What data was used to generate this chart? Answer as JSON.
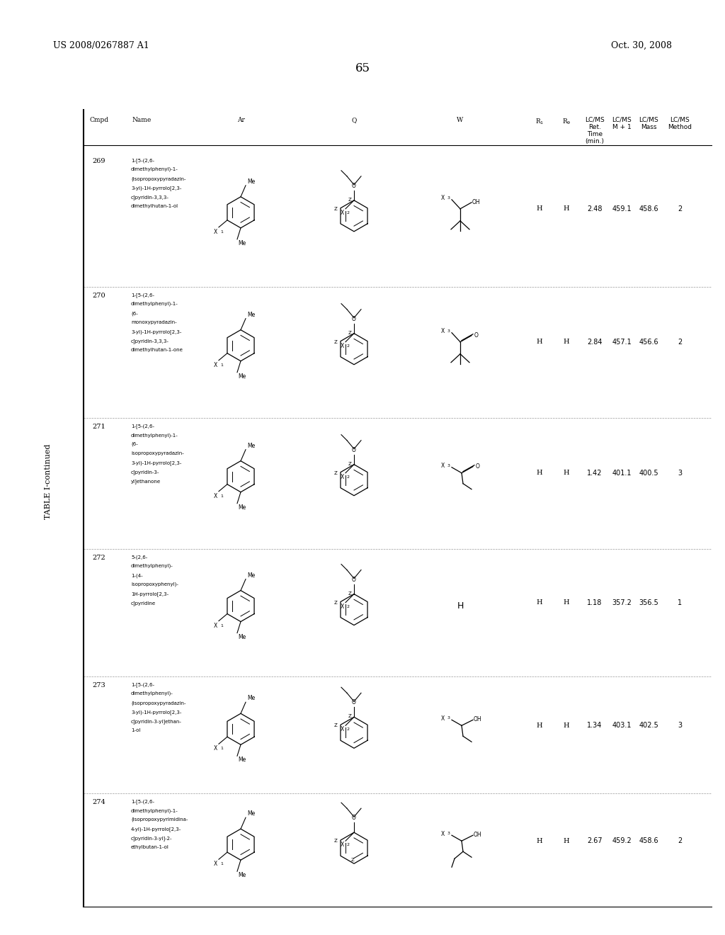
{
  "patent_left": "US 2008/0267887 A1",
  "patent_right": "Oct. 30, 2008",
  "page_number": "65",
  "table_title": "TABLE I-continued",
  "bg": "#f0f0f0",
  "page_bg": "#ffffff",
  "compounds": [
    {
      "cmpd": "269",
      "R1": "H",
      "R9": "H",
      "ret": "2.48",
      "m1": "459.1",
      "mass": "458.6",
      "method": "2"
    },
    {
      "cmpd": "270",
      "R1": "H",
      "R9": "H",
      "ret": "2.84",
      "m1": "457.1",
      "mass": "456.6",
      "method": "2"
    },
    {
      "cmpd": "271",
      "R1": "H",
      "R9": "H",
      "ret": "1.42",
      "m1": "401.1",
      "mass": "400.5",
      "method": "3"
    },
    {
      "cmpd": "272",
      "R1": "H",
      "R9": "H",
      "ret": "1.18",
      "m1": "357.2",
      "mass": "356.5",
      "method": "1"
    },
    {
      "cmpd": "273",
      "R1": "H",
      "R9": "H",
      "ret": "1.34",
      "m1": "403.1",
      "mass": "402.5",
      "method": "3"
    },
    {
      "cmpd": "274",
      "R1": "H",
      "R9": "H",
      "ret": "2.67",
      "m1": "459.2",
      "mass": "458.6",
      "method": "2"
    }
  ],
  "names": [
    "1-[5-(2,6-\ndimethylphenyl)-1-\n(isopropoxypyradazin-\n3-yl)-1H-pyrrolo[2,3-\nc]pyridin-3,3,3-\ndimethylhutan-1-ol",
    "1-[5-(2,6-\ndimethylphenyl)-1-\n(6-\nmonoxypyradazin-\n3-yl)-1H-pyrrolo[2,3-\nc]pyridin-3,3,3-\ndimethylhutan-1-one",
    "1-[5-(2,6-\ndimethylphenyl)-1-\n(6-\nisopropoxypyradazin-\n3-yl)-1H-pyrrolo[2,3-\nc]pyridin-3-\nyl]ethanone",
    "5-(2,6-\ndimethylphenyl)-\n1-(4-\nisopropoxyphenyl)-\n1H-pyrrolo[2,3-\nc]pyridine",
    "1-[5-(2,6-\ndimethylphenyl)-\n(isopropoxypyradazin-\n3-yl)-1H-pyrrolo[2,3-\nc]pyridin-3-yl]ethan-\n1-ol",
    "1-[5-(2,6-\ndimethylphenyl)-1-\n(isopropoxypyrimidina-\n4-yl)-1H-pyrrolo[2,3-\nc]pyridin-3-yl]-2-\nethylbutan-1-ol"
  ]
}
